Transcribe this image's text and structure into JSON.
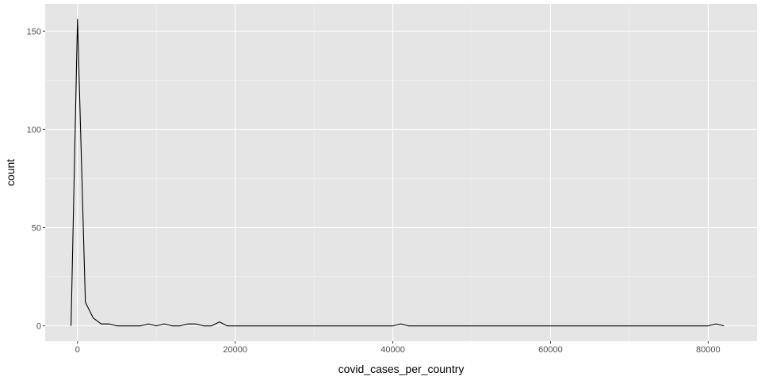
{
  "chart_data": {
    "type": "line",
    "geom": "freqpoly",
    "title": "",
    "xlabel": "covid_cases_per_country",
    "ylabel": "count",
    "xlim": [
      -4100,
      86200
    ],
    "ylim": [
      -7.8,
      163.8
    ],
    "x_ticks": [
      0,
      20000,
      40000,
      60000,
      80000
    ],
    "x_tick_labels": [
      "0",
      "20000",
      "40000",
      "60000",
      "80000"
    ],
    "x_minor_ticks": [
      10000,
      30000,
      50000,
      70000
    ],
    "y_ticks": [
      0,
      50,
      100,
      150
    ],
    "y_tick_labels": [
      "0",
      "50",
      "100",
      "150"
    ],
    "y_minor_ticks": [
      25,
      75,
      125
    ],
    "grid": true,
    "legend": "none",
    "colors": {
      "panel_background": "#e5e5e5",
      "grid_major": "#ffffff",
      "grid_minor": "#f2f2f2",
      "line": "#000000",
      "tick": "#333333"
    },
    "series": [
      {
        "x": [
          -820,
          0,
          1000,
          2000,
          3000,
          4000,
          5000,
          6000,
          7000,
          8000,
          9000,
          10000,
          11000,
          12000,
          13000,
          14000,
          15000,
          16000,
          17000,
          18000,
          19000,
          20000,
          21000,
          22000,
          23000,
          24000,
          25000,
          26000,
          27000,
          28000,
          29000,
          30000,
          31000,
          32000,
          33000,
          34000,
          35000,
          36000,
          37000,
          38000,
          39000,
          40000,
          41000,
          42000,
          43000,
          44000,
          45000,
          46000,
          47000,
          48000,
          49000,
          50000,
          51000,
          52000,
          53000,
          54000,
          55000,
          56000,
          57000,
          58000,
          59000,
          60000,
          61000,
          62000,
          63000,
          64000,
          65000,
          66000,
          67000,
          68000,
          69000,
          70000,
          71000,
          72000,
          73000,
          74000,
          75000,
          76000,
          77000,
          78000,
          79000,
          80000,
          81000,
          82000
        ],
        "values": [
          0,
          156,
          12,
          4,
          1,
          1,
          0,
          0,
          0,
          0,
          1,
          0,
          1,
          0,
          0,
          1,
          1,
          0,
          0,
          2,
          0,
          0,
          0,
          0,
          0,
          0,
          0,
          0,
          0,
          0,
          0,
          0,
          0,
          0,
          0,
          0,
          0,
          0,
          0,
          0,
          0,
          0,
          1,
          0,
          0,
          0,
          0,
          0,
          0,
          0,
          0,
          0,
          0,
          0,
          0,
          0,
          0,
          0,
          0,
          0,
          0,
          0,
          0,
          0,
          0,
          0,
          0,
          0,
          0,
          0,
          0,
          0,
          0,
          0,
          0,
          0,
          0,
          0,
          0,
          0,
          0,
          0,
          1,
          0
        ]
      }
    ]
  }
}
